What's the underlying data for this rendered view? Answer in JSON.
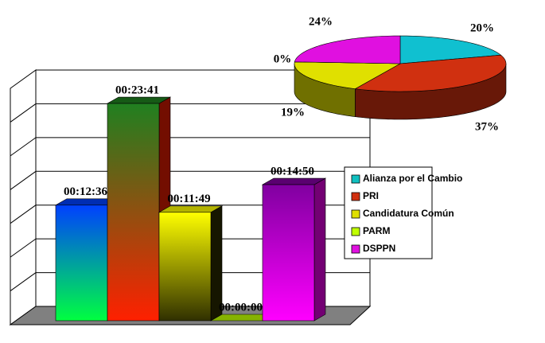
{
  "chart_data": [
    {
      "type": "bar",
      "ylim": [
        0,
        1520
      ],
      "legend": "right",
      "series": [
        {
          "name": "Alianza por el Cambio",
          "color": "#10c0c0",
          "gradient": [
            "#0040ff",
            "#00ff40"
          ],
          "values": [
            756
          ],
          "value_labels": [
            "00:12:36"
          ]
        },
        {
          "name": "PRI",
          "color": "#d03010",
          "gradient": [
            "#208020",
            "#ff2000"
          ],
          "values": [
            1421
          ],
          "value_labels": [
            "00:23:41"
          ]
        },
        {
          "name": "Candidatura Común",
          "color": "#e0e000",
          "gradient": [
            "#ffff00",
            "#303000"
          ],
          "values": [
            709
          ],
          "value_labels": [
            "00:11:49"
          ]
        },
        {
          "name": "PARM",
          "color": "#c0ff00",
          "gradient": [
            "#c0ff00",
            "#80c000"
          ],
          "values": [
            0
          ],
          "value_labels": [
            "00:00:00"
          ]
        },
        {
          "name": "DSPPN",
          "color": "#e010e0",
          "gradient": [
            "#8000a0",
            "#ff00ff"
          ],
          "values": [
            890
          ],
          "value_labels": [
            "00:14:50"
          ]
        }
      ]
    },
    {
      "type": "pie",
      "values": [
        20,
        37,
        19,
        0,
        24
      ],
      "value_labels": [
        "20%",
        "37%",
        "19%",
        "0%",
        "24%"
      ],
      "colors": [
        "#10c0d0",
        "#d03010",
        "#e0e000",
        "#c0ff00",
        "#e010e0"
      ]
    }
  ]
}
